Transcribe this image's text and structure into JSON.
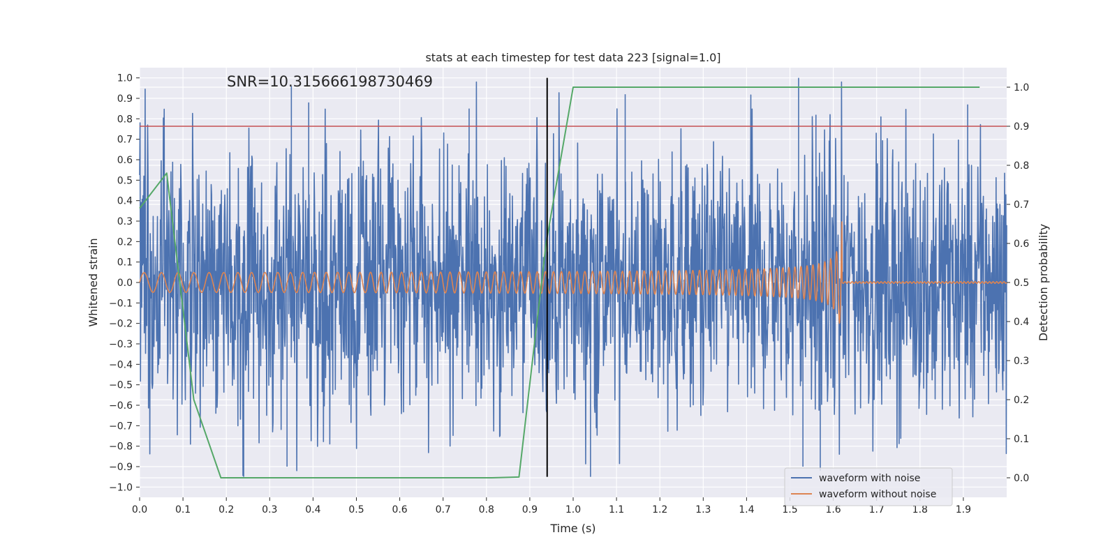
{
  "chart_data": {
    "type": "line",
    "title": "stats at each timestep for test data 223 [signal=1.0]",
    "annotation": "SNR=10.315666198730469",
    "xlabel": "Time (s)",
    "ylabel_left": "Whitened strain",
    "ylabel_right": "Detection probability",
    "xlim": [
      0.0,
      2.0
    ],
    "ylim_left": [
      -1.05,
      1.05
    ],
    "ylim_right": [
      -0.05,
      1.05
    ],
    "x_ticks": [
      "0.0",
      "0.1",
      "0.2",
      "0.3",
      "0.4",
      "0.5",
      "0.6",
      "0.7",
      "0.8",
      "0.9",
      "1.0",
      "1.1",
      "1.2",
      "1.3",
      "1.4",
      "1.5",
      "1.6",
      "1.7",
      "1.8",
      "1.9"
    ],
    "y_left_ticks": [
      "1.0",
      "0.9",
      "0.8",
      "0.7",
      "0.6",
      "0.5",
      "0.4",
      "0.3",
      "0.2",
      "0.1",
      "0.0",
      "−0.1",
      "−0.2",
      "−0.3",
      "−0.4",
      "−0.5",
      "−0.6",
      "−0.7",
      "−0.8",
      "−0.9",
      "−1.0"
    ],
    "y_right_ticks": [
      "1.0",
      "0.9",
      "0.8",
      "0.7",
      "0.6",
      "0.5",
      "0.4",
      "0.3",
      "0.2",
      "0.1",
      "0.0"
    ],
    "threshold": {
      "value": 0.9,
      "axis": "right",
      "color": "#c44e52"
    },
    "vline": {
      "x": 0.94,
      "color": "#000000",
      "ymin": -0.95,
      "ymax": 1.0
    },
    "series": [
      {
        "name": "waveform with noise",
        "axis": "left",
        "color": "#4c72b0",
        "kind": "noise",
        "samples": 2048,
        "amplitude": 0.32,
        "spikes": [
          {
            "x": 0.35,
            "y": 0.96
          },
          {
            "x": 0.39,
            "y": 0.88
          },
          {
            "x": 0.76,
            "y": 0.85
          },
          {
            "x": 1.12,
            "y": 0.92
          },
          {
            "x": 1.52,
            "y": 1.0
          },
          {
            "x": 1.56,
            "y": 0.82
          },
          {
            "x": 1.91,
            "y": 0.87
          },
          {
            "x": 0.24,
            "y": -0.95
          },
          {
            "x": 1.04,
            "y": -0.95
          },
          {
            "x": 1.57,
            "y": -0.92
          },
          {
            "x": 1.53,
            "y": -0.9
          },
          {
            "x": 0.34,
            "y": -0.9
          }
        ]
      },
      {
        "name": "waveform without noise",
        "axis": "left",
        "color": "#dd8452",
        "kind": "chirp",
        "merger_time": 1.62,
        "amplitude_start": 0.04,
        "amplitude_peak": 0.42,
        "freq_start_hz": 24,
        "freq_end_hz": 75
      },
      {
        "name": "detection probability",
        "axis": "right",
        "color": "#55a868",
        "kind": "polyline",
        "x": [
          0.0,
          0.0625,
          0.125,
          0.1875,
          0.25,
          0.3125,
          0.375,
          0.4375,
          0.5,
          0.5625,
          0.625,
          0.6875,
          0.75,
          0.8125,
          0.875,
          0.9375,
          1.0,
          1.0625,
          1.125,
          1.1875,
          1.25,
          1.3125,
          1.375,
          1.4375,
          1.5,
          1.5625,
          1.625,
          1.6875,
          1.75,
          1.8125,
          1.875,
          1.9375
        ],
        "y": [
          0.69,
          0.78,
          0.2,
          0.0,
          0.0,
          0.0,
          0.0,
          0.0,
          0.0,
          0.0,
          0.0,
          0.0,
          0.0,
          0.0,
          0.002,
          0.6,
          1.0,
          1.0,
          1.0,
          1.0,
          1.0,
          1.0,
          1.0,
          1.0,
          1.0,
          1.0,
          1.0,
          1.0,
          1.0,
          1.0,
          1.0,
          1.0
        ]
      }
    ],
    "legend": {
      "position": "lower-right",
      "entries": [
        "waveform with noise",
        "waveform without noise"
      ]
    }
  }
}
